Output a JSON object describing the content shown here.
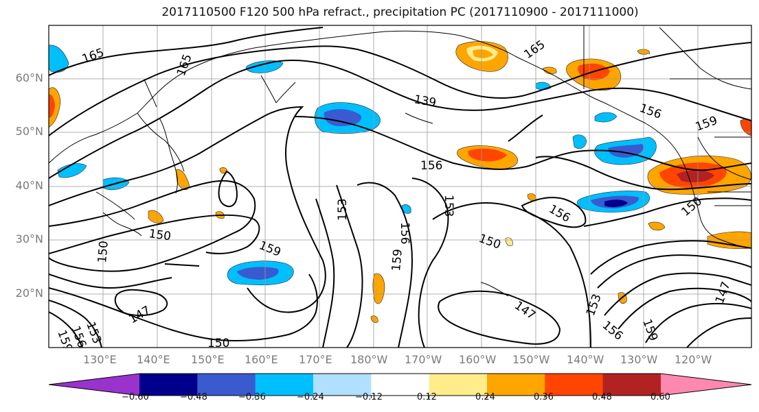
{
  "title": "2017110500 F120 500 hPa refract., precipitation PC (2017110900 - 2017111000)",
  "lat_labels": [
    "60°N",
    "50°N",
    "40°N",
    "30°N",
    "20°N"
  ],
  "lon_labels": [
    "130°E",
    "140°E",
    "150°E",
    "160°E",
    "170°E",
    "180°W",
    "170°W",
    "160°W",
    "150°W",
    "140°W",
    "130°W",
    "120°W"
  ],
  "contour_labels": [
    "165",
    "165",
    "165",
    "139",
    "156",
    "159",
    "156",
    "153",
    "153",
    "156",
    "156",
    "150",
    "159",
    "159",
    "150",
    "150",
    "150",
    "147",
    "147",
    "153",
    "156",
    "159",
    "147",
    "150",
    "153",
    "156",
    "159"
  ],
  "colorbar": {
    "ticks": [
      "−0.60",
      "−0.48",
      "−0.36",
      "−0.24",
      "−0.12",
      "0.12",
      "0.24",
      "0.36",
      "0.48",
      "0.60"
    ],
    "colors": [
      "#9933cc",
      "#00008b",
      "#3a5bcf",
      "#00bfff",
      "#b0e0ff",
      "#ffffff",
      "#ffec8b",
      "#ffa500",
      "#ff4500",
      "#b22222",
      "#ff88b0"
    ]
  },
  "colors": {
    "contour": "#000000",
    "grid": "#999999",
    "coast": "#000000",
    "axis_label": "#7a7a7a"
  }
}
